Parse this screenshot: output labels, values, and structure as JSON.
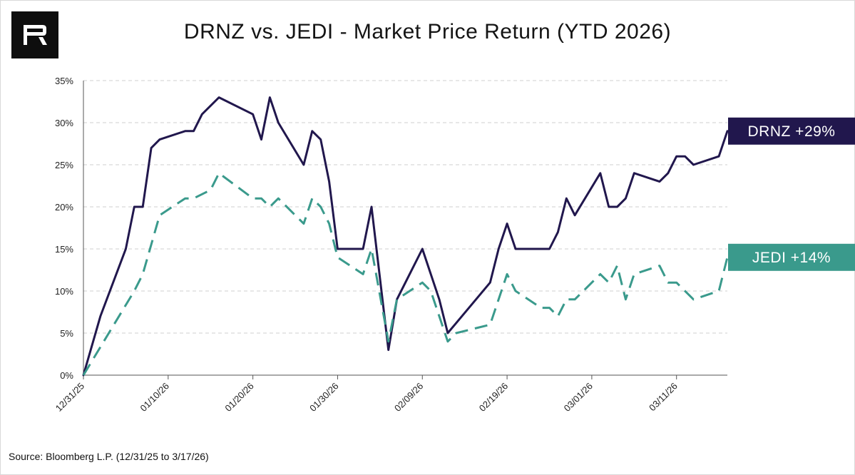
{
  "header": {
    "title": "DRNZ vs. JEDI - Market Price Return (YTD 2026)",
    "logo_letter": "R"
  },
  "footer": {
    "source": "Source: Bloomberg L.P. (12/31/25 to 3/17/26)"
  },
  "colors": {
    "drnz": "#21174d",
    "jedi": "#3a9a8c",
    "grid": "#cfcfcf",
    "logo_bg": "#0e0e0e"
  },
  "chart_data": {
    "type": "line",
    "title": "DRNZ vs. JEDI - Market Price Return (YTD 2026)",
    "xlabel": "",
    "ylabel": "",
    "ylim": [
      0,
      35
    ],
    "xlim": [
      0,
      76
    ],
    "y_ticks": [
      {
        "value": 0,
        "label": "0%"
      },
      {
        "value": 5,
        "label": "5%"
      },
      {
        "value": 10,
        "label": "10%"
      },
      {
        "value": 15,
        "label": "15%"
      },
      {
        "value": 20,
        "label": "20%"
      },
      {
        "value": 25,
        "label": "25%"
      },
      {
        "value": 30,
        "label": "30%"
      },
      {
        "value": 35,
        "label": "35%"
      }
    ],
    "x_ticks": [
      {
        "day": 0,
        "label": "12/31/25"
      },
      {
        "day": 10,
        "label": "01/10/26"
      },
      {
        "day": 20,
        "label": "01/20/26"
      },
      {
        "day": 30,
        "label": "01/30/26"
      },
      {
        "day": 40,
        "label": "02/09/26"
      },
      {
        "day": 50,
        "label": "02/19/26"
      },
      {
        "day": 60,
        "label": "03/01/26"
      },
      {
        "day": 70,
        "label": "03/11/26"
      }
    ],
    "legend": "end-labels-right",
    "grid": true,
    "series": [
      {
        "name": "DRNZ",
        "end_label": "DRNZ +29%",
        "style": "solid",
        "points": [
          [
            0,
            0
          ],
          [
            2,
            7
          ],
          [
            5,
            15
          ],
          [
            6,
            20
          ],
          [
            7,
            20
          ],
          [
            8,
            27
          ],
          [
            9,
            28
          ],
          [
            12,
            29
          ],
          [
            13,
            29
          ],
          [
            14,
            31
          ],
          [
            16,
            33
          ],
          [
            20,
            31
          ],
          [
            21,
            28
          ],
          [
            22,
            33
          ],
          [
            23,
            30
          ],
          [
            26,
            25
          ],
          [
            27,
            29
          ],
          [
            28,
            28
          ],
          [
            29,
            23
          ],
          [
            30,
            15
          ],
          [
            33,
            15
          ],
          [
            34,
            20
          ],
          [
            36,
            3
          ],
          [
            37,
            9
          ],
          [
            40,
            15
          ],
          [
            42,
            9
          ],
          [
            43,
            5
          ],
          [
            48,
            11
          ],
          [
            49,
            15
          ],
          [
            50,
            18
          ],
          [
            51,
            15
          ],
          [
            55,
            15
          ],
          [
            56,
            17
          ],
          [
            57,
            21
          ],
          [
            58,
            19
          ],
          [
            61,
            24
          ],
          [
            62,
            20
          ],
          [
            63,
            20
          ],
          [
            64,
            21
          ],
          [
            65,
            24
          ],
          [
            68,
            23
          ],
          [
            69,
            24
          ],
          [
            70,
            26
          ],
          [
            71,
            26
          ],
          [
            72,
            25
          ],
          [
            75,
            26
          ],
          [
            76,
            29
          ]
        ]
      },
      {
        "name": "JEDI",
        "end_label": "JEDI +14%",
        "style": "dashed",
        "points": [
          [
            0,
            0
          ],
          [
            3,
            5
          ],
          [
            6,
            10
          ],
          [
            7,
            12
          ],
          [
            9,
            19
          ],
          [
            12,
            21
          ],
          [
            13,
            21
          ],
          [
            15,
            22
          ],
          [
            16,
            24
          ],
          [
            20,
            21
          ],
          [
            21,
            21
          ],
          [
            22,
            20
          ],
          [
            23,
            21
          ],
          [
            26,
            18
          ],
          [
            27,
            21
          ],
          [
            28,
            20
          ],
          [
            29,
            18
          ],
          [
            30,
            14
          ],
          [
            33,
            12
          ],
          [
            34,
            15
          ],
          [
            36,
            4
          ],
          [
            37,
            9
          ],
          [
            40,
            11
          ],
          [
            41,
            10
          ],
          [
            43,
            4
          ],
          [
            44,
            5
          ],
          [
            48,
            6
          ],
          [
            50,
            12
          ],
          [
            51,
            10
          ],
          [
            54,
            8
          ],
          [
            55,
            8
          ],
          [
            56,
            7
          ],
          [
            57,
            9
          ],
          [
            58,
            9
          ],
          [
            61,
            12
          ],
          [
            62,
            11
          ],
          [
            63,
            13
          ],
          [
            64,
            9
          ],
          [
            65,
            12
          ],
          [
            68,
            13
          ],
          [
            69,
            11
          ],
          [
            70,
            11
          ],
          [
            72,
            9
          ],
          [
            75,
            10
          ],
          [
            76,
            14
          ]
        ]
      }
    ]
  }
}
